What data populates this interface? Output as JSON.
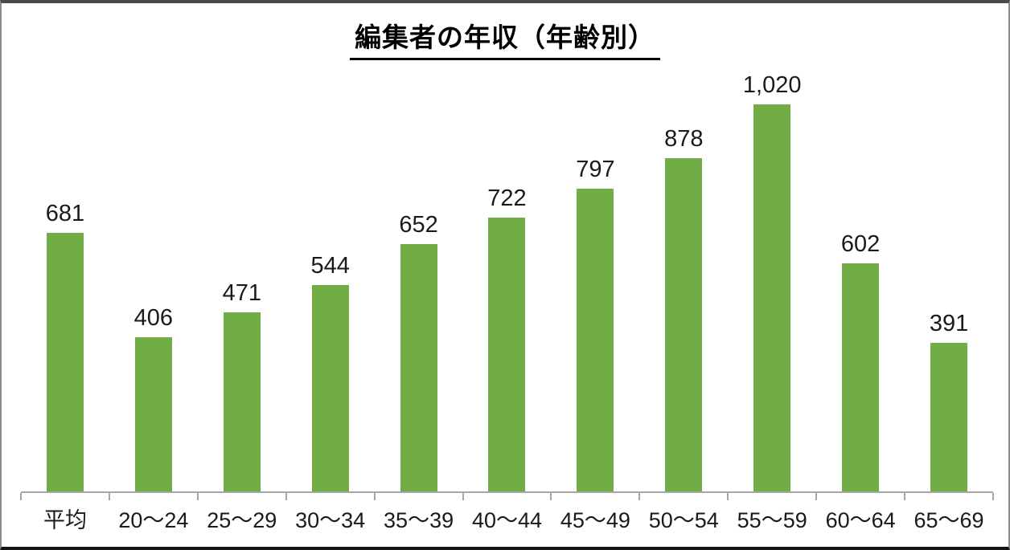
{
  "chart_data": {
    "type": "bar",
    "title": "編集者の年収（年齢別）",
    "categories": [
      "平均",
      "20〜24",
      "25〜29",
      "30〜34",
      "35〜39",
      "40〜44",
      "45〜49",
      "50〜54",
      "55〜59",
      "60〜64",
      "65〜69"
    ],
    "values": [
      681,
      406,
      471,
      544,
      652,
      722,
      797,
      878,
      1020,
      602,
      391
    ],
    "value_labels": [
      "681",
      "406",
      "471",
      "544",
      "652",
      "722",
      "797",
      "878",
      "1,020",
      "602",
      "391"
    ],
    "xlabel": "",
    "ylabel": "",
    "ylim": [
      0,
      1080
    ],
    "grid": false,
    "legend": "none",
    "bar_color": "#70ad47",
    "axis_color": "#a6a6a6",
    "label_color": "#1a1a1a",
    "title_color": "#000000",
    "title_underline": true
  }
}
